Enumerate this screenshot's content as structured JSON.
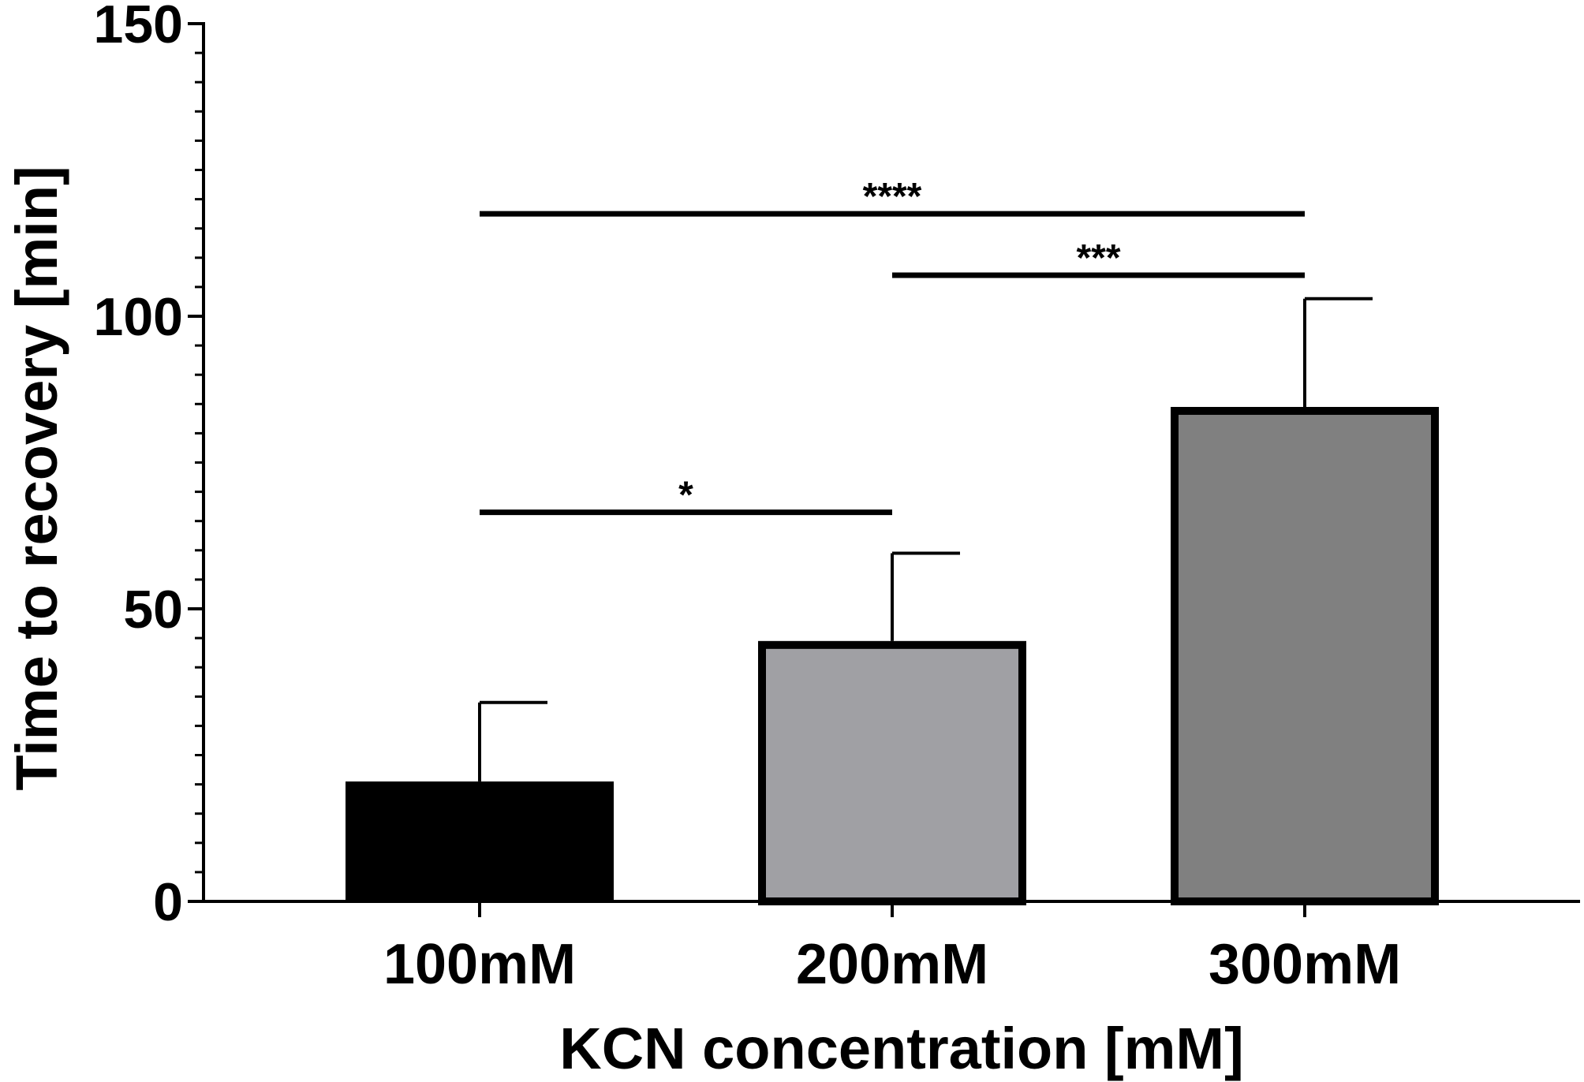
{
  "chart_data": {
    "type": "bar",
    "categories": [
      "100mM",
      "200mM",
      "300mM"
    ],
    "values": [
      20.5,
      44.5,
      84.5
    ],
    "errors": [
      13.5,
      15.0,
      18.5
    ],
    "colors": [
      "#000000",
      "#a0a0a4",
      "#808080"
    ],
    "title": "",
    "xlabel": "KCN concentration [mM]",
    "ylabel": "Time to recovery [min]",
    "ylim": [
      0,
      150
    ],
    "yticks": [
      0,
      50,
      100,
      150
    ],
    "y_minor_step": 5,
    "grid": false,
    "legend": "none",
    "significance": [
      {
        "from": 0,
        "to": 1,
        "y": 66.5,
        "label": "*"
      },
      {
        "from": 1,
        "to": 2,
        "y": 107,
        "label": "***"
      },
      {
        "from": 0,
        "to": 2,
        "y": 117.5,
        "label": "****"
      }
    ]
  }
}
